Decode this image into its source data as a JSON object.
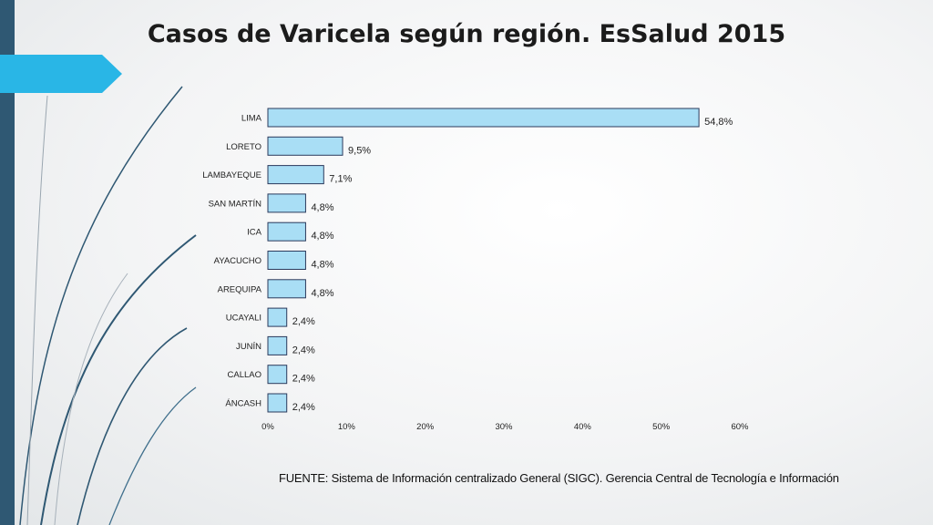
{
  "slide": {
    "title": "Casos de Varicela según región. EsSalud 2015",
    "source": "FUENTE: Sistema de Información centralizado General (SIGC). Gerencia Central de Tecnología e Información"
  },
  "colors": {
    "bar_fill": "#a9def5",
    "bar_stroke": "#2b3a5c",
    "accent": "#29b6e6",
    "sidebar": "#2f5873"
  },
  "chart_data": {
    "type": "bar",
    "orientation": "horizontal",
    "title": "",
    "categories": [
      "LIMA",
      "LORETO",
      "LAMBAYEQUE",
      "SAN MARTÍN",
      "ICA",
      "AYACUCHO",
      "AREQUIPA",
      "UCAYALI",
      "JUNÍN",
      "CALLAO",
      "ÁNCASH"
    ],
    "values": [
      54.8,
      9.5,
      7.1,
      4.8,
      4.8,
      4.8,
      4.8,
      2.4,
      2.4,
      2.4,
      2.4
    ],
    "value_labels": [
      "54,8%",
      "9,5%",
      "7,1%",
      "4,8%",
      "4,8%",
      "4,8%",
      "4,8%",
      "2,4%",
      "2,4%",
      "2,4%",
      "2,4%"
    ],
    "x_ticks": [
      "0%",
      "10%",
      "20%",
      "30%",
      "40%",
      "50%",
      "60%"
    ],
    "xlim": [
      0,
      60
    ],
    "xlabel": "",
    "ylabel": "",
    "grid": false,
    "legend": "none"
  }
}
